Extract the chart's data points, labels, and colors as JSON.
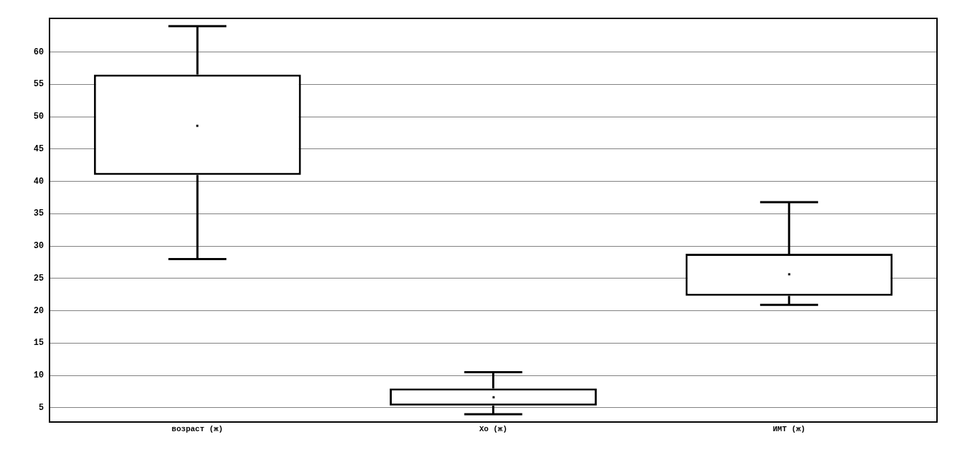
{
  "chart_data": {
    "type": "box",
    "categories": [
      "возраст (ж)",
      "Хо (ж)",
      "ИМТ (ж)"
    ],
    "color": "#000000",
    "boxes": [
      {
        "low": 28,
        "q1": 41,
        "median": 48.6,
        "q3": 56.5,
        "high": 64
      },
      {
        "low": 4,
        "q1": 5.35,
        "median": 6.6,
        "q3": 8,
        "high": 10.5
      },
      {
        "low": 20.9,
        "q1": 22.3,
        "median": 25.6,
        "q3": 28.8,
        "high": 36.8
      }
    ],
    "ylim": [
      2.8,
      65.2
    ],
    "yticks": [
      5,
      10,
      15,
      20,
      25,
      30,
      35,
      40,
      45,
      50,
      55,
      60
    ],
    "grid": "y"
  }
}
